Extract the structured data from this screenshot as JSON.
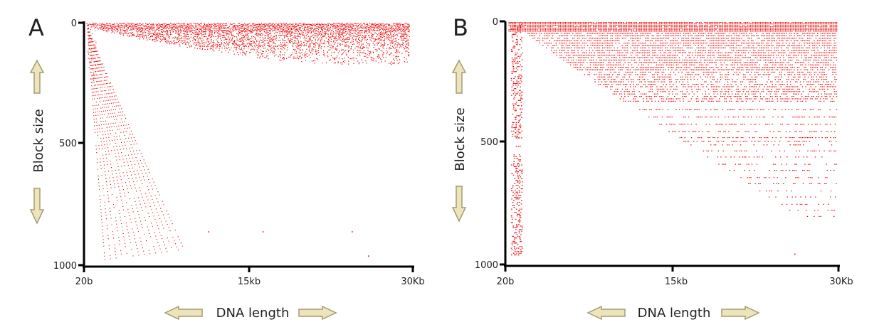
{
  "panels": [
    {
      "panel_label": "A",
      "ylabel": "Block size",
      "xlabel": "DNA length"
    },
    {
      "panel_label": "B",
      "ylabel": "Block size",
      "xlabel": "DNA length"
    }
  ],
  "colors": {
    "points": "#ee0000",
    "axis": "#000000",
    "arrow_fill": "#eee4bc",
    "arrow_stroke": "#a39b72"
  },
  "icons": [
    "arrow-up-icon",
    "arrow-down-icon",
    "arrow-left-icon",
    "arrow-right-icon"
  ],
  "chart_data": [
    {
      "type": "scatter",
      "title": "",
      "xlabel": "DNA length",
      "ylabel": "Block size",
      "y_inverted": true,
      "x_ticks": [
        "20b",
        "15kb",
        "30Kb"
      ],
      "y_ticks": [
        "0",
        "500",
        "1000"
      ],
      "xlim": [
        "20b",
        "30Kb"
      ],
      "ylim": [
        0,
        1000
      ],
      "grid": false,
      "legend": "none",
      "series": [
        {
          "description": "dense band of blocks near the top across all lengths",
          "y_range": [
            0,
            170
          ],
          "x_range_kb": [
            0.02,
            29.8
          ]
        },
        {
          "description": "fan of diagonal lines from the origin at short lengths",
          "y_range": [
            0,
            975
          ],
          "x_range_kb": [
            0.02,
            9
          ]
        },
        {
          "description": "isolated outliers",
          "points": [
            {
              "x_kb": 11.3,
              "y": 860
            },
            {
              "x_kb": 16.3,
              "y": 860
            },
            {
              "x_kb": 24.5,
              "y": 860
            },
            {
              "x_kb": 26.0,
              "y": 960
            }
          ]
        }
      ]
    },
    {
      "type": "scatter",
      "title": "",
      "xlabel": "DNA length",
      "ylabel": "Block size",
      "y_inverted": true,
      "x_ticks": [
        "20b",
        "15kb",
        "30Kb"
      ],
      "y_ticks": [
        "0",
        "500",
        "1000"
      ],
      "xlim": [
        "20b",
        "30Kb"
      ],
      "ylim": [
        0,
        1000
      ],
      "grid": false,
      "legend": "none",
      "series": [
        {
          "description": "horizontal runs of blocks; each block size begins at increasing DNA length",
          "y_range": [
            0,
            810
          ],
          "x_range_kb": [
            0.02,
            29.8
          ]
        },
        {
          "description": "dense vertical column of short rows at small lengths",
          "y_range": [
            0,
            965
          ],
          "x_range_kb": [
            0.3,
            1.3
          ]
        },
        {
          "description": "isolated outlier",
          "points": [
            {
              "x_kb": 26.0,
              "y": 955
            }
          ]
        }
      ]
    }
  ]
}
